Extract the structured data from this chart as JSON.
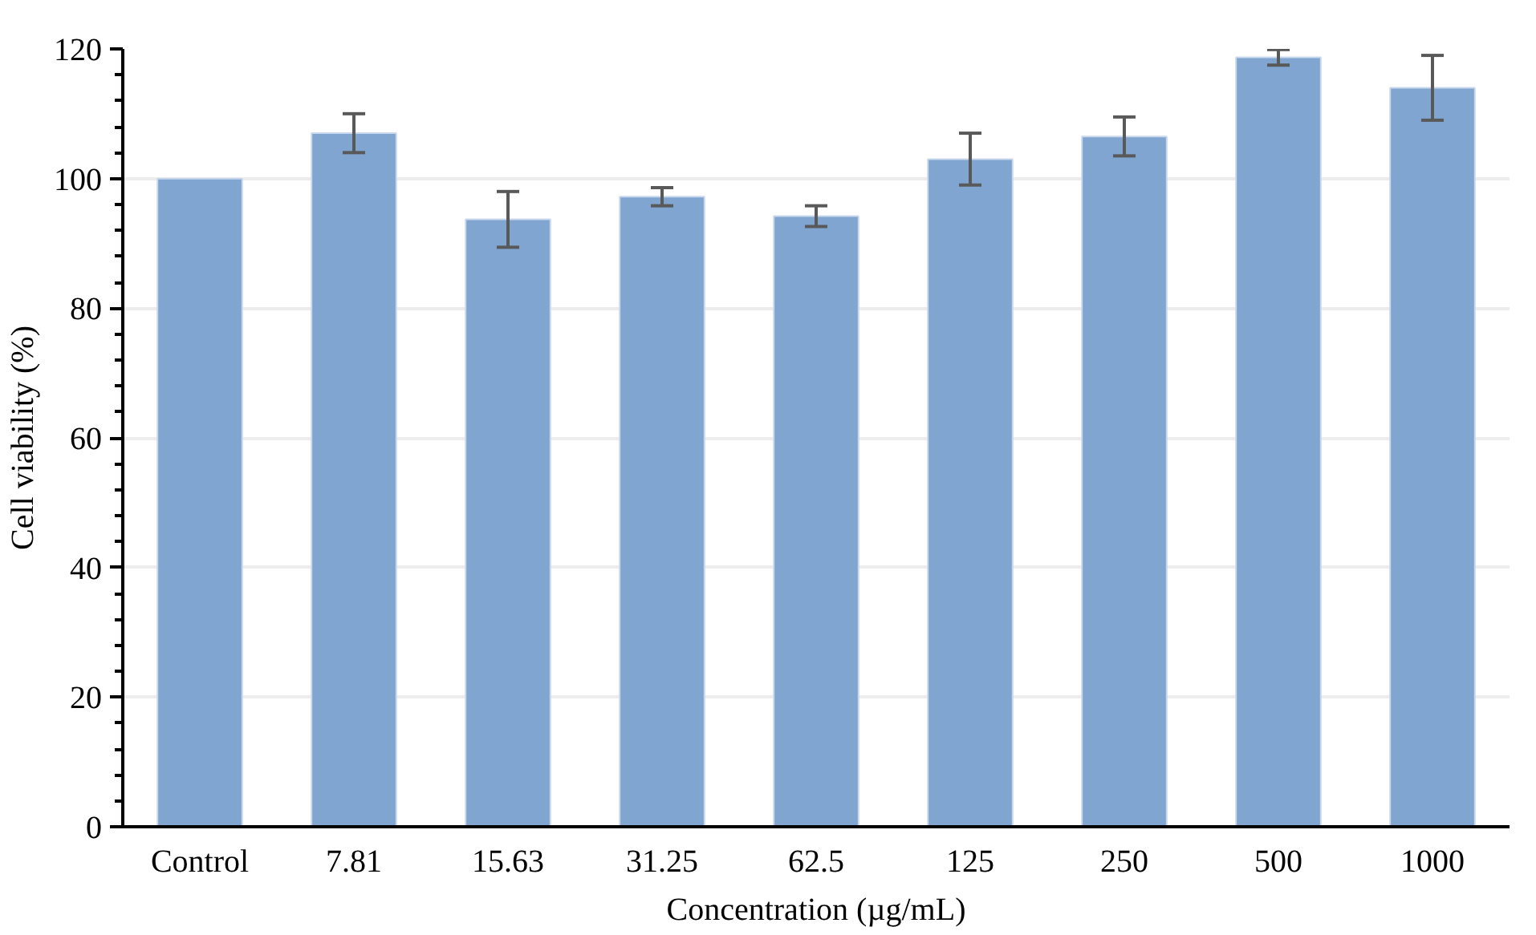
{
  "chart_data": {
    "type": "bar",
    "xlabel": "Concentration (µg/mL)",
    "ylabel": "Cell viability (%)",
    "categories": [
      "Control",
      "7.81",
      "15.63",
      "31.25",
      "62.5",
      "125",
      "250",
      "500",
      "1000"
    ],
    "values": [
      100,
      107,
      93.7,
      97.2,
      94.2,
      103,
      106.5,
      118.7,
      114
    ],
    "errors": [
      null,
      3,
      4.3,
      1.4,
      1.6,
      4,
      3,
      1.2,
      5
    ],
    "color": "#7fa5d0",
    "ylim": [
      0,
      120
    ],
    "yticks": [
      0,
      20,
      40,
      60,
      80,
      100,
      120
    ],
    "grid": "y"
  }
}
